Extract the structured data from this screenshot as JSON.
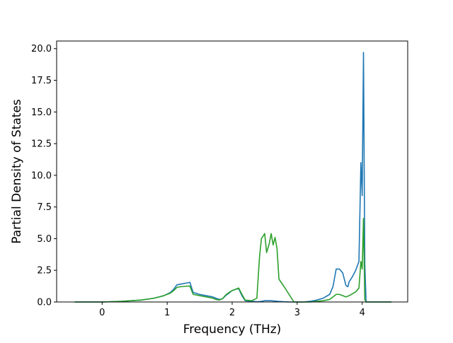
{
  "chart_data": {
    "type": "line",
    "title": "",
    "xlabel": "Frequency (THz)",
    "ylabel": "Partial Density of States",
    "xlim": [
      -0.7,
      4.7
    ],
    "ylim": [
      0,
      20.6
    ],
    "xticks": [
      0,
      1,
      2,
      3,
      4
    ],
    "xtick_labels": [
      "0",
      "1",
      "2",
      "3",
      "4"
    ],
    "yticks": [
      0.0,
      2.5,
      5.0,
      7.5,
      10.0,
      12.5,
      15.0,
      17.5,
      20.0
    ],
    "ytick_labels": [
      "0.0",
      "2.5",
      "5.0",
      "7.5",
      "10.0",
      "12.5",
      "15.0",
      "17.5",
      "20.0"
    ],
    "grid": false,
    "legend": "none",
    "series": [
      {
        "color": "#1f77b4",
        "x": [
          -0.42,
          0.0,
          0.3,
          0.6,
          0.8,
          0.95,
          1.05,
          1.1,
          1.15,
          1.2,
          1.3,
          1.35,
          1.4,
          1.5,
          1.6,
          1.7,
          1.75,
          1.8,
          1.85,
          1.9,
          1.95,
          2.0,
          2.05,
          2.1,
          2.15,
          2.2,
          2.3,
          2.4,
          2.45,
          2.5,
          2.6,
          2.7,
          2.8,
          2.9,
          3.0,
          3.1,
          3.2,
          3.3,
          3.4,
          3.5,
          3.55,
          3.6,
          3.65,
          3.7,
          3.75,
          3.78,
          3.8,
          3.85,
          3.9,
          3.95,
          3.98,
          4.0,
          4.02,
          4.04,
          4.06,
          4.1,
          4.2,
          4.3,
          4.45
        ],
        "y": [
          0.0,
          0.0,
          0.05,
          0.15,
          0.3,
          0.5,
          0.75,
          1.0,
          1.35,
          1.4,
          1.5,
          1.55,
          0.75,
          0.6,
          0.5,
          0.4,
          0.3,
          0.2,
          0.25,
          0.5,
          0.7,
          0.9,
          1.0,
          1.05,
          0.5,
          0.1,
          0.05,
          0.02,
          0.05,
          0.1,
          0.1,
          0.05,
          0.02,
          0.0,
          0.0,
          0.0,
          0.05,
          0.15,
          0.3,
          0.6,
          1.2,
          2.6,
          2.6,
          2.3,
          1.3,
          1.2,
          1.6,
          2.0,
          2.5,
          3.2,
          11.0,
          8.4,
          19.7,
          3.0,
          0.0,
          0.0,
          0.0,
          0.0,
          0.0
        ]
      },
      {
        "color": "#2ca02c",
        "x": [
          -0.42,
          0.0,
          0.3,
          0.6,
          0.8,
          0.95,
          1.05,
          1.1,
          1.15,
          1.2,
          1.3,
          1.35,
          1.4,
          1.5,
          1.6,
          1.7,
          1.75,
          1.8,
          1.85,
          1.9,
          1.95,
          2.0,
          2.05,
          2.1,
          2.15,
          2.2,
          2.3,
          2.38,
          2.42,
          2.45,
          2.5,
          2.53,
          2.57,
          2.6,
          2.63,
          2.66,
          2.69,
          2.72,
          2.8,
          2.9,
          2.95,
          3.0,
          3.2,
          3.4,
          3.5,
          3.55,
          3.6,
          3.65,
          3.7,
          3.75,
          3.8,
          3.9,
          3.95,
          3.98,
          4.0,
          4.02,
          4.04,
          4.06,
          4.1,
          4.2,
          4.3,
          4.45
        ],
        "y": [
          0.0,
          0.0,
          0.05,
          0.15,
          0.3,
          0.5,
          0.7,
          0.9,
          1.15,
          1.2,
          1.25,
          1.25,
          0.6,
          0.5,
          0.4,
          0.3,
          0.2,
          0.15,
          0.25,
          0.55,
          0.75,
          0.9,
          1.0,
          1.1,
          0.6,
          0.15,
          0.1,
          0.3,
          3.5,
          5.0,
          5.4,
          3.9,
          4.6,
          5.4,
          4.5,
          5.1,
          4.2,
          1.8,
          1.2,
          0.4,
          0.0,
          0.0,
          0.0,
          0.1,
          0.2,
          0.4,
          0.6,
          0.6,
          0.5,
          0.4,
          0.5,
          0.8,
          1.1,
          3.2,
          2.6,
          6.6,
          0.2,
          0.0,
          0.0,
          0.0,
          0.0,
          0.0
        ]
      }
    ]
  }
}
